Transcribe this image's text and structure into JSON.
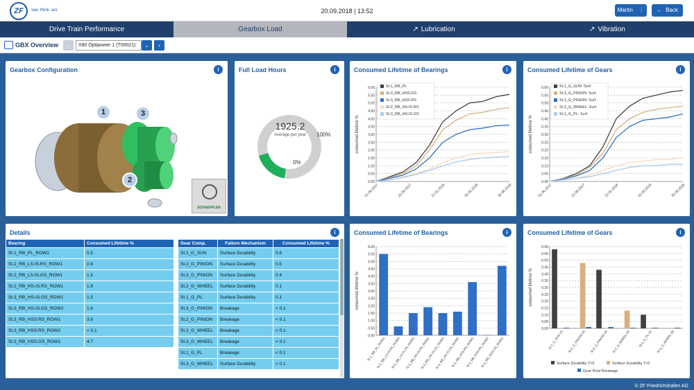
{
  "header": {
    "logo_text": "ZF",
    "tagline": "see. think. act.",
    "datetime": "20.09.2018 | 13:52",
    "user_button": "Martin",
    "user_menu_glyph": "⋮",
    "back_button": "Back",
    "back_icon": "←"
  },
  "nav": {
    "tabs": [
      {
        "label": "Drive Train Performance",
        "external": false
      },
      {
        "label": "Gearbox Load",
        "external": false
      },
      {
        "label": "Lubrication",
        "external": true
      },
      {
        "label": "Vibration",
        "external": true
      }
    ],
    "active_index": 1,
    "external_icon": "↗"
  },
  "subbar": {
    "title": "GBX Overview",
    "prev_icon": "‹",
    "selected_machine": "X80 Optipower 1 (T00021)",
    "dropdown_icon": "⌄",
    "next_icon": "›"
  },
  "panels": {
    "gearbox_config": {
      "title": "Gearbox Configuration",
      "info": "i",
      "markers": [
        "1",
        "2",
        "3"
      ],
      "vendor_label": "SCHAEFFLER"
    },
    "full_load": {
      "title": "Full Load Hours",
      "info": "i",
      "value": "1925.2",
      "sublabel": "Average per year",
      "max_label": "100%",
      "min_label": "0%",
      "fill_fraction": 0.2
    },
    "bearings_line": {
      "title": "Consumed Lifetime of Bearings",
      "info": "i"
    },
    "gears_line": {
      "title": "Consumed Lifetime of Gears",
      "info": "i"
    },
    "details": {
      "title": "Details",
      "info": "i",
      "bearing_headers": [
        "Bearing",
        "Consumed Lifetime %"
      ],
      "bearing_rows": [
        [
          "St.1_RB_PL_ROW1",
          "5.5"
        ],
        [
          "St.2_RB_LS-IS.RS_ROW1",
          "0.6"
        ],
        [
          "St.2_RB_LS-IS.GS_ROW1",
          "1.5"
        ],
        [
          "St.2_RB_HS-IS.RS_ROW1",
          "1.9"
        ],
        [
          "St.3_RB_HS-IS.GS_ROW1",
          "1.5"
        ],
        [
          "St.3_RB_HS-IS.GS_ROW2",
          "1.6"
        ],
        [
          "St.3_RB_HSS.RS_ROW1",
          "3.6"
        ],
        [
          "St.3_RB_HSS.RS_ROW2",
          "< 0.1"
        ],
        [
          "St.3_RB_HSS.GS_ROW1",
          "4.7"
        ]
      ],
      "gear_headers": [
        "Gear Comp.",
        "Failure Mechanism",
        "Consumed Lifetime %"
      ],
      "gear_rows": [
        [
          "St.1_G_SUN",
          "Surface Durability",
          "0.6"
        ],
        [
          "St.2_G_PINION",
          "Surface Durability",
          "0.5"
        ],
        [
          "St.3_G_PINION",
          "Surface Durability",
          "0.4"
        ],
        [
          "St.2_G_WHEEL",
          "Surface Durability",
          "0.1"
        ],
        [
          "St.1_G_PL",
          "Surface Durability",
          "0.1"
        ],
        [
          "St.3_G_PINION",
          "Breakage",
          "< 0.1"
        ],
        [
          "St.2_G_PINION",
          "Breakage",
          "< 0.1"
        ],
        [
          "St.2_G_WHEEL",
          "Breakage",
          "< 0.1"
        ],
        [
          "St.3_G_WHEEL",
          "Breakage",
          "< 0.1"
        ],
        [
          "St.1_G_PL",
          "Breakage",
          "< 0.1"
        ],
        [
          "St.3_G_WHEEL",
          "Surface Durability",
          "< 0.1"
        ]
      ]
    },
    "bearings_bar": {
      "title": "Consumed Lifetime of Bearings",
      "info": "i"
    },
    "gears_bar": {
      "title": "Consumed Lifetime of Gears",
      "info": "i"
    }
  },
  "footer": {
    "copyright": "© ZF Friedrichshafen AG"
  },
  "chart_data": [
    {
      "type": "line",
      "title": "Consumed Lifetime of Bearings",
      "ylabel": "consumed lifetime %",
      "ylim": [
        0,
        6
      ],
      "yticks": [
        "0.00",
        "0.50",
        "1.00",
        "1.50",
        "2.00",
        "2.50",
        "3.00",
        "3.50",
        "4.00",
        "4.50",
        "5.00",
        "5.50",
        "6.00"
      ],
      "x": [
        "01.06.2017",
        "22.09.2017",
        "12.01.2018",
        "02.05.2018",
        "30.08.2018"
      ],
      "x_pos": [
        0,
        0.25,
        0.5,
        0.75,
        1
      ],
      "series": [
        {
          "name": "St.1_RB_PL",
          "color": "#404040",
          "values": [
            [
              0,
              0
            ],
            [
              0.1,
              0.3
            ],
            [
              0.2,
              0.6
            ],
            [
              0.3,
              1.2
            ],
            [
              0.4,
              2.3
            ],
            [
              0.5,
              3.8
            ],
            [
              0.6,
              4.5
            ],
            [
              0.7,
              5.0
            ],
            [
              0.8,
              5.1
            ],
            [
              0.9,
              5.4
            ],
            [
              1,
              5.55
            ]
          ]
        },
        {
          "name": "St.3_RB_HSS.GS",
          "color": "#d6b07f",
          "values": [
            [
              0,
              0
            ],
            [
              0.1,
              0.25
            ],
            [
              0.2,
              0.5
            ],
            [
              0.3,
              1.0
            ],
            [
              0.4,
              2.0
            ],
            [
              0.5,
              3.3
            ],
            [
              0.6,
              3.9
            ],
            [
              0.7,
              4.3
            ],
            [
              0.8,
              4.4
            ],
            [
              0.9,
              4.6
            ],
            [
              1,
              4.7
            ]
          ]
        },
        {
          "name": "St.3_RB_HSS.RS",
          "color": "#2f6fc4",
          "values": [
            [
              0,
              0
            ],
            [
              0.1,
              0.2
            ],
            [
              0.2,
              0.4
            ],
            [
              0.3,
              0.8
            ],
            [
              0.4,
              1.5
            ],
            [
              0.5,
              2.5
            ],
            [
              0.6,
              3.0
            ],
            [
              0.7,
              3.3
            ],
            [
              0.8,
              3.4
            ],
            [
              0.9,
              3.55
            ],
            [
              1,
              3.6
            ]
          ]
        },
        {
          "name": "St.2_RB_HS-IS.RS",
          "color": "#f3dcc0",
          "values": [
            [
              0,
              0
            ],
            [
              0.1,
              0.1
            ],
            [
              0.2,
              0.3
            ],
            [
              0.3,
              0.5
            ],
            [
              0.4,
              0.8
            ],
            [
              0.5,
              1.2
            ],
            [
              0.6,
              1.5
            ],
            [
              0.7,
              1.7
            ],
            [
              0.8,
              1.8
            ],
            [
              0.9,
              1.85
            ],
            [
              1,
              1.9
            ]
          ]
        },
        {
          "name": "St.3_RB_HS-IS.GS",
          "color": "#a9c8ef",
          "values": [
            [
              0,
              0
            ],
            [
              0.1,
              0.1
            ],
            [
              0.2,
              0.25
            ],
            [
              0.3,
              0.45
            ],
            [
              0.4,
              0.7
            ],
            [
              0.5,
              1.0
            ],
            [
              0.6,
              1.25
            ],
            [
              0.7,
              1.4
            ],
            [
              0.8,
              1.5
            ],
            [
              0.9,
              1.55
            ],
            [
              1,
              1.6
            ]
          ]
        }
      ],
      "legend": "top-left",
      "grid": true
    },
    {
      "type": "line",
      "title": "Consumed Lifetime of Gears",
      "ylabel": "consumed lifetime %",
      "ylim": [
        0,
        0.6
      ],
      "yticks": [
        "0.00",
        "0.05",
        "0.10",
        "0.15",
        "0.20",
        "0.25",
        "0.30",
        "0.35",
        "0.40",
        "0.45",
        "0.50",
        "0.55",
        "0.60"
      ],
      "x": [
        "01.06.2017",
        "22.09.2017",
        "12.01.2018",
        "02.05.2018",
        "30.08.2018"
      ],
      "x_pos": [
        0,
        0.25,
        0.5,
        0.75,
        1
      ],
      "series": [
        {
          "name": "St.1_G_SUN: Surf.",
          "color": "#404040",
          "values": [
            [
              0,
              0
            ],
            [
              0.1,
              0.02
            ],
            [
              0.2,
              0.05
            ],
            [
              0.3,
              0.1
            ],
            [
              0.4,
              0.22
            ],
            [
              0.5,
              0.4
            ],
            [
              0.6,
              0.48
            ],
            [
              0.7,
              0.53
            ],
            [
              0.8,
              0.55
            ],
            [
              0.9,
              0.57
            ],
            [
              1,
              0.58
            ]
          ]
        },
        {
          "name": "St.3_G_PINION: Surf.",
          "color": "#d6b07f",
          "values": [
            [
              0,
              0
            ],
            [
              0.1,
              0.02
            ],
            [
              0.2,
              0.04
            ],
            [
              0.3,
              0.09
            ],
            [
              0.4,
              0.18
            ],
            [
              0.5,
              0.33
            ],
            [
              0.6,
              0.4
            ],
            [
              0.7,
              0.44
            ],
            [
              0.8,
              0.46
            ],
            [
              0.9,
              0.47
            ],
            [
              1,
              0.48
            ]
          ]
        },
        {
          "name": "St.3_G_PINION: Surf.",
          "color": "#2f6fc4",
          "values": [
            [
              0,
              0
            ],
            [
              0.1,
              0.015
            ],
            [
              0.2,
              0.035
            ],
            [
              0.3,
              0.07
            ],
            [
              0.4,
              0.15
            ],
            [
              0.5,
              0.28
            ],
            [
              0.6,
              0.35
            ],
            [
              0.7,
              0.39
            ],
            [
              0.8,
              0.4
            ],
            [
              0.9,
              0.41
            ],
            [
              1,
              0.43
            ]
          ]
        },
        {
          "name": "St.2_G_WHEEL: Surf.",
          "color": "#f3dcc0",
          "values": [
            [
              0,
              0
            ],
            [
              0.1,
              0.01
            ],
            [
              0.2,
              0.02
            ],
            [
              0.3,
              0.04
            ],
            [
              0.4,
              0.07
            ],
            [
              0.5,
              0.1
            ],
            [
              0.6,
              0.12
            ],
            [
              0.7,
              0.13
            ],
            [
              0.8,
              0.14
            ],
            [
              0.9,
              0.14
            ],
            [
              1,
              0.15
            ]
          ]
        },
        {
          "name": "St.1_G_PL: Surf.",
          "color": "#a9c8ef",
          "values": [
            [
              0,
              0
            ],
            [
              0.1,
              0.01
            ],
            [
              0.2,
              0.02
            ],
            [
              0.3,
              0.03
            ],
            [
              0.4,
              0.05
            ],
            [
              0.5,
              0.07
            ],
            [
              0.6,
              0.09
            ],
            [
              0.7,
              0.1
            ],
            [
              0.8,
              0.1
            ],
            [
              0.9,
              0.11
            ],
            [
              1,
              0.11
            ]
          ]
        }
      ],
      "legend": "top-left",
      "grid": true
    },
    {
      "type": "bar",
      "title": "Consumed Lifetime of Bearings",
      "ylabel": "consumed lifetime %",
      "ylim": [
        0,
        6
      ],
      "yticks": [
        "0.00",
        "0.50",
        "1.00",
        "1.50",
        "2.00",
        "2.50",
        "3.00",
        "3.50",
        "4.00",
        "4.50",
        "5.00",
        "5.50",
        "6.00"
      ],
      "categories": [
        "St.1_RB_PL_ROW1",
        "St.2_RB_LS-IS.RS_ROW1",
        "St.2_RB_LS-IS.GS_ROW1",
        "St.2_RB_HS-IS.RS_ROW1",
        "St.3_RB_HS-IS.GS_ROW1",
        "St.3_RB_HS-IS.GS_ROW2",
        "St.3_RB_HSS.RS_ROW1",
        "St.3_RB_HSS.RS_ROW2",
        "St.3_RB_HSS.GS_ROW1"
      ],
      "values": [
        5.5,
        0.6,
        1.5,
        1.9,
        1.5,
        1.6,
        3.6,
        0.02,
        4.7
      ],
      "color": "#2f6fc4",
      "grid": true
    },
    {
      "type": "bar",
      "title": "Consumed Lifetime of Gears",
      "ylabel": "consumed lifetime %",
      "ylim": [
        0,
        0.6
      ],
      "yticks": [
        "0.00",
        "0.05",
        "0.10",
        "0.15",
        "0.20",
        "0.25",
        "0.30",
        "0.35",
        "0.40",
        "0.45",
        "0.50",
        "0.55",
        "0.60"
      ],
      "categories": [
        "St.1_G_SUN (1)",
        "St.2_G_PINION (2)",
        "St.3_G_PINION (3)",
        "St.2_G_WHEEL (2)",
        "St.1_G_PL (1)",
        "St.3_G_WHEEL (3)"
      ],
      "series": [
        {
          "name": "Surface Durability T>0",
          "color": "#404040",
          "values": [
            0.58,
            0,
            0.43,
            0,
            0.1,
            0
          ]
        },
        {
          "name": "Surface Durability T<0",
          "color": "#d6b07f",
          "values": [
            0,
            0.48,
            0,
            0.13,
            0,
            0
          ]
        },
        {
          "name": "Gear Root Breakage",
          "color": "#2f6fc4",
          "values": [
            0.005,
            0.01,
            0.01,
            0.005,
            0.005,
            0.005
          ]
        }
      ],
      "legend": "bottom",
      "grid": true
    }
  ]
}
